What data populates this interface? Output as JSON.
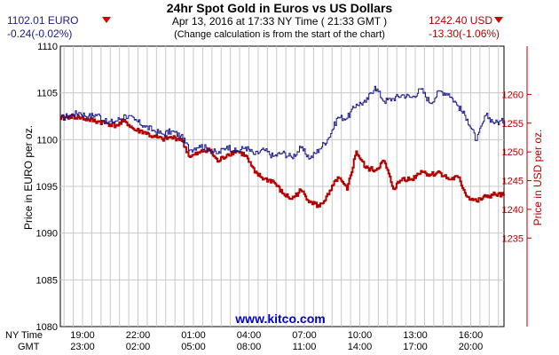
{
  "header": {
    "title": "24hr Spot Gold in Euros vs US Dollars",
    "subtitle": "Apr 13, 2016 at 17:33 NY Time ( 21:33 GMT )",
    "note": "(Change calculation is from the start of the chart)",
    "left_price": "1102.01 EURO",
    "left_change": "-0.24(-0.02%)",
    "right_price": "1242.40 USD",
    "right_change": "-13.30(-1.06%)",
    "watermark": "www.kitco.com",
    "row_label_ny": "NY Time",
    "row_label_gmt": "GMT"
  },
  "colors": {
    "euro": "#1a1a8c",
    "usd": "#b30000",
    "down_arrow": "#cc0000",
    "watermark": "#0000cc",
    "grid": "#c8c8c8",
    "plot_bg": "#ffffff"
  },
  "chart_data": {
    "type": "line",
    "title": "24hr Spot Gold in Euros vs US Dollars",
    "x_ticks": {
      "ny_time": [
        "19:00",
        "22:00",
        "01:00",
        "04:00",
        "07:00",
        "10:00",
        "13:00",
        "16:00"
      ],
      "gmt": [
        "23:00",
        "02:00",
        "05:00",
        "08:00",
        "11:00",
        "14:00",
        "17:00",
        "20:00"
      ]
    },
    "x_tick_hours_from_start": [
      1.2,
      4.2,
      7.2,
      10.2,
      13.2,
      16.2,
      19.2,
      22.2
    ],
    "xlim_hours": [
      0,
      24
    ],
    "left_axis": {
      "label": "Price in EURO per oz.",
      "ylim": [
        1080,
        1110
      ],
      "ticks": [
        1080,
        1085,
        1090,
        1095,
        1100,
        1105,
        1110
      ]
    },
    "right_axis": {
      "label": "Price in USD per oz.",
      "ylim": [
        1219.6,
        1268.4
      ],
      "ticks": [
        1235,
        1240,
        1245,
        1250,
        1255,
        1260
      ]
    },
    "grid": true,
    "series": [
      {
        "axis": "left",
        "x": [
          0,
          0.5,
          1,
          1.5,
          2,
          2.5,
          3,
          3.5,
          4,
          4.5,
          5,
          5.5,
          6,
          6.5,
          7,
          7.5,
          8,
          8.5,
          9,
          9.5,
          10,
          10.5,
          11,
          11.5,
          12,
          12.5,
          13,
          13.5,
          14,
          14.5,
          15,
          15.5,
          16,
          16.5,
          17,
          17.5,
          18,
          18.5,
          19,
          19.5,
          20,
          20.5,
          21,
          21.5,
          22,
          22.5,
          23,
          23.5,
          24
        ],
        "values": [
          1102.3,
          1102.6,
          1102.9,
          1102.5,
          1102.7,
          1101.8,
          1102.0,
          1102.6,
          1102.1,
          1101.5,
          1101.0,
          1100.6,
          1100.9,
          1100.4,
          1098.9,
          1099.4,
          1099.0,
          1098.5,
          1099.3,
          1098.7,
          1099.2,
          1098.4,
          1098.9,
          1098.2,
          1098.6,
          1098.1,
          1099.1,
          1098.0,
          1099.0,
          1100.2,
          1102.4,
          1102.3,
          1103.8,
          1104.0,
          1105.7,
          1104.1,
          1104.4,
          1104.8,
          1104.5,
          1105.4,
          1103.9,
          1105.2,
          1104.9,
          1103.6,
          1102.2,
          1099.9,
          1102.6,
          1101.8,
          1102.0
        ]
      },
      {
        "axis": "right",
        "x": [
          0,
          0.5,
          1,
          1.5,
          2,
          2.5,
          3,
          3.5,
          4,
          4.5,
          5,
          5.5,
          6,
          6.5,
          7,
          7.5,
          8,
          8.5,
          9,
          9.5,
          10,
          10.5,
          11,
          11.5,
          12,
          12.5,
          13,
          13.5,
          14,
          14.5,
          15,
          15.5,
          16,
          16.5,
          17,
          17.5,
          18,
          18.5,
          19,
          19.5,
          20,
          20.5,
          21,
          21.5,
          22,
          22.5,
          23,
          23.5,
          24
        ],
        "values": [
          1255.7,
          1256.2,
          1256.0,
          1255.6,
          1255.3,
          1255.0,
          1254.6,
          1255.3,
          1253.8,
          1253.5,
          1252.6,
          1252.2,
          1252.5,
          1252.3,
          1249.1,
          1249.8,
          1250.6,
          1248.3,
          1249.5,
          1250.2,
          1249.4,
          1246.4,
          1245.3,
          1244.9,
          1242.8,
          1241.8,
          1243.3,
          1241.4,
          1240.5,
          1242.6,
          1245.6,
          1243.4,
          1250.1,
          1247.2,
          1246.8,
          1248.4,
          1243.6,
          1245.4,
          1245.2,
          1246.7,
          1246.0,
          1246.5,
          1245.2,
          1245.6,
          1242.2,
          1241.4,
          1242.2,
          1242.6,
          1242.4
        ]
      }
    ]
  }
}
